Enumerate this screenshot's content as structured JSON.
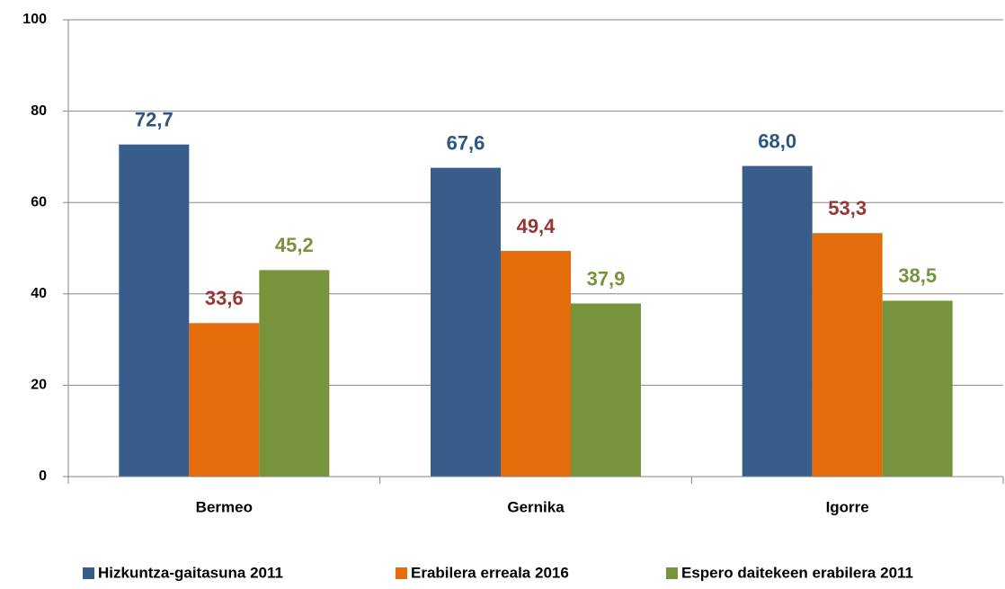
{
  "chart_data": {
    "type": "bar",
    "categories": [
      "Bermeo",
      "Gernika",
      "Igorre"
    ],
    "series": [
      {
        "name": "Hizkuntza-gaitasuna 2011",
        "color": "#385d8a",
        "label_color": "#2c5484",
        "values": [
          72.7,
          67.6,
          68.0
        ],
        "value_labels": [
          "72,7",
          "67,6",
          "68,0"
        ]
      },
      {
        "name": "Erabilera erreala 2016",
        "color": "#e46c0a",
        "label_color": "#953735",
        "values": [
          33.6,
          49.4,
          53.3
        ],
        "value_labels": [
          "33,6",
          "49,4",
          "53,3"
        ]
      },
      {
        "name": "Espero daitekeen erabilera 2011",
        "color": "#77933c",
        "label_color": "#77933c",
        "values": [
          45.2,
          37.9,
          38.5
        ],
        "value_labels": [
          "45,2",
          "37,9",
          "38,5"
        ]
      }
    ],
    "ylim": [
      0,
      100
    ],
    "yticks": [
      0,
      20,
      40,
      60,
      80,
      100
    ],
    "grid": true,
    "legend": "bottom"
  }
}
